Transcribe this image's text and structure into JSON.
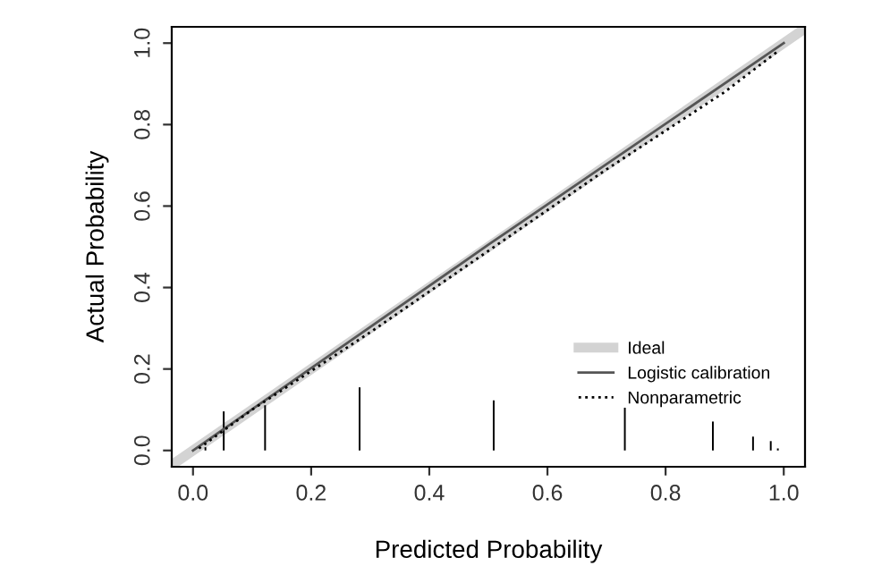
{
  "chart_data": {
    "type": "line",
    "xlabel": "Predicted Probability",
    "ylabel": "Actual Probability",
    "xlim": [
      -0.036,
      1.036
    ],
    "ylim": [
      -0.04,
      1.04
    ],
    "xticks": [
      {
        "value": 0,
        "label": "0.0"
      },
      0.2,
      0.4,
      0.6,
      0.8,
      {
        "value": 1,
        "label": "1.0"
      }
    ],
    "yticks": [
      {
        "value": 0,
        "label": "0.0"
      },
      0.2,
      0.4,
      0.6,
      0.8,
      {
        "value": 1,
        "label": "1.0"
      }
    ],
    "grid": false,
    "legend": "bottom right",
    "series": [
      {
        "name": "Ideal",
        "color": "#d3d3d3",
        "x": [
          -0.03,
          1.03
        ],
        "values": [
          -0.03,
          1.03
        ]
      },
      {
        "name": "Logistic calibration",
        "color": "#555555",
        "x": [
          0.0,
          0.5,
          1.0
        ],
        "values": [
          0.0,
          0.505,
          1.0
        ]
      },
      {
        "name": "Nonparametric",
        "color": "#000000",
        "line_style": "dotted",
        "x": [
          0.01,
          0.1,
          0.3,
          0.5,
          0.7,
          0.9,
          0.99
        ],
        "values": [
          0.005,
          0.1,
          0.29,
          0.49,
          0.69,
          0.88,
          0.98
        ]
      },
      {
        "type": "bar",
        "color": "#000000",
        "x": [
          0.021,
          0.052,
          0.122,
          0.282,
          0.509,
          0.731,
          0.88,
          0.948,
          0.978,
          0.99
        ],
        "values": [
          0.008,
          0.096,
          0.111,
          0.155,
          0.123,
          0.105,
          0.071,
          0.034,
          0.023,
          0.005
        ]
      }
    ]
  }
}
